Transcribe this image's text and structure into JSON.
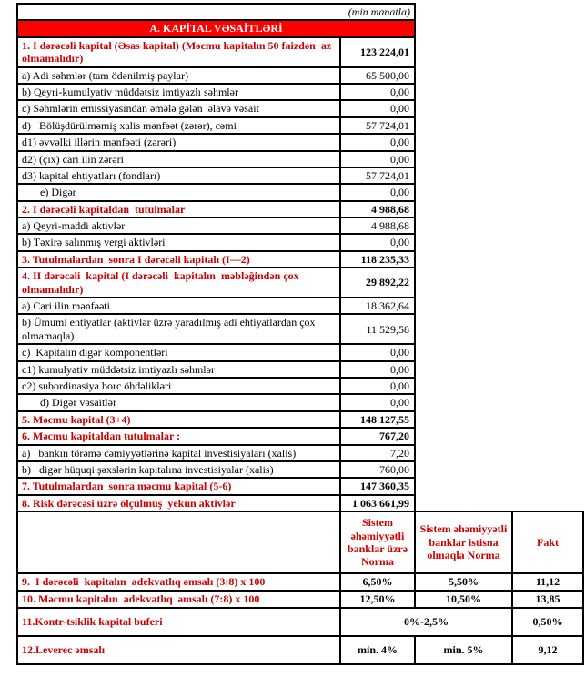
{
  "unit_note": "(min manatla)",
  "section_title": "A. KAPİTAL VƏSAİTLƏRİ",
  "colors": {
    "banner_bg": "#ff0000",
    "banner_text": "#ffffff",
    "label_red": "#cc0000",
    "body_text": "#000000"
  },
  "capital_rows": [
    {
      "type": "section",
      "label": "1. I dərəcəli kapital (Əsas kapital) (Məcmu kapitalın 50 faizdən  az olmamalıdır)",
      "value": "123 224,01"
    },
    {
      "type": "sub",
      "label": "a) Adi səhmlər (tam ödənilmiş paylar)",
      "value": "65 500,00"
    },
    {
      "type": "sub",
      "label": "b) Qeyri-kumulyativ müddətsiz imtiyazlı səhmlər",
      "value": "0,00"
    },
    {
      "type": "sub",
      "label": "c) Səhmlərin emissiyasından əmələ gələn  əlavə vəsait",
      "value": "0,00"
    },
    {
      "type": "sub",
      "label": "d)   Bölüşdürülməmiş xalis mənfəət (zərər), cəmi",
      "value": "57 724,01"
    },
    {
      "type": "sub",
      "label": "d1) əvvəlki illərin mənfəəti (zərəri)",
      "value": "0,00"
    },
    {
      "type": "sub",
      "label": "d2) (çıx) cari ilin zərəri",
      "value": "0,00"
    },
    {
      "type": "sub",
      "label": "d3) kapital ehtiyatları (fondları)",
      "value": "57 724,01"
    },
    {
      "type": "sub indent",
      "label": "e) Digər",
      "value": "0,00"
    },
    {
      "type": "section",
      "label": "2. I dərəcəli kapitaldan  tutulmalar",
      "value": "4 988,68"
    },
    {
      "type": "sub",
      "label": "a) Qeyri-maddi aktivlər",
      "value": "4 988,68"
    },
    {
      "type": "sub",
      "label": "b) Təxirə salınmış vergi aktivləri",
      "value": "0,00"
    },
    {
      "type": "section",
      "label": "3. Tutulmalardan  sonra I dərəcəli kapitalı (I—2)",
      "value": "118 235,33"
    },
    {
      "type": "section",
      "label": "4. II dərəcəli  kapital (I dərəcəli  kapitalın  məbləğindən çox olmamalıdır)",
      "value": "29 892,22"
    },
    {
      "type": "sub",
      "label": "a) Cari ilin mənfəəti",
      "value": "18 362,64"
    },
    {
      "type": "sub",
      "label": "b) Ümumi ehtiyatlar (aktivlər üzrə yaradılmış adi ehtiyatlardan çox olmamaqla)",
      "value": "11 529,58"
    },
    {
      "type": "sub",
      "label": "c)  Kapitalın digər komponentləri",
      "value": "0,00"
    },
    {
      "type": "sub",
      "label": "c1) kumulyativ müddətsiz imtiyazlı səhmlər",
      "value": "0,00"
    },
    {
      "type": "sub",
      "label": "c2) subordinasiya borc öhdəlikləri",
      "value": "0,00"
    },
    {
      "type": "sub indent",
      "label": "d) Digər vəsaitlər",
      "value": "0,00"
    },
    {
      "type": "section",
      "label": "5. Məcmu kapital (3+4)",
      "value": "148 127,55"
    },
    {
      "type": "section",
      "label": "6. Məcmu kapitaldan tutulmalar :",
      "value": "767,20"
    },
    {
      "type": "sub",
      "label": "a)   bankın törəmə cəmiyyətlərinə kapital investisiyaları (xalis)",
      "value": "7,20"
    },
    {
      "type": "sub",
      "label": "b)   digər hüquqi şəxslərin kapitalına investisiyalar (xalis)",
      "value": "760,00"
    },
    {
      "type": "section",
      "label": "7. Tutulmalardan  sonra məcmu kapital (5-6)",
      "value": "147 360,35"
    },
    {
      "type": "section",
      "label": "8. Risk dərəcəsi üzrə ölçülmüş  yekun aktivlər",
      "value": "1 063 661,99"
    }
  ],
  "adequacy": {
    "col_headers": [
      "Sistem əhəmiyyətli banklar üzrə Norma",
      "Sistem əhəmiyyətli banklar istisna olmaqla Norma",
      "Fakt"
    ],
    "rows": [
      {
        "label": "9.  I dərəcəli  kapitalın  adekvatlıq əmsalı (3:8) x 100",
        "cells": [
          {
            "text": "6,50%",
            "span": 1
          },
          {
            "text": "5,50%",
            "span": 1
          },
          {
            "text": "11,12",
            "span": 1
          }
        ]
      },
      {
        "label": "10. Məcmu kapitalın  adekvatlıq  əmsalı (7:8) x 100",
        "cells": [
          {
            "text": "12,50%",
            "span": 1
          },
          {
            "text": "10,50%",
            "span": 1
          },
          {
            "text": "13,85",
            "span": 1
          }
        ]
      },
      {
        "label": "11.Kontr-tsiklik kapital buferi",
        "cells": [
          {
            "text": "0%-2,5%",
            "span": 2
          },
          {
            "text": "0,50%",
            "span": 1
          }
        ]
      },
      {
        "label": "12.Leverec əmsalı",
        "cells": [
          {
            "text": "min. 4%",
            "span": 1
          },
          {
            "text": "min. 5%",
            "span": 1
          },
          {
            "text": "9,12",
            "span": 1
          }
        ]
      }
    ]
  }
}
